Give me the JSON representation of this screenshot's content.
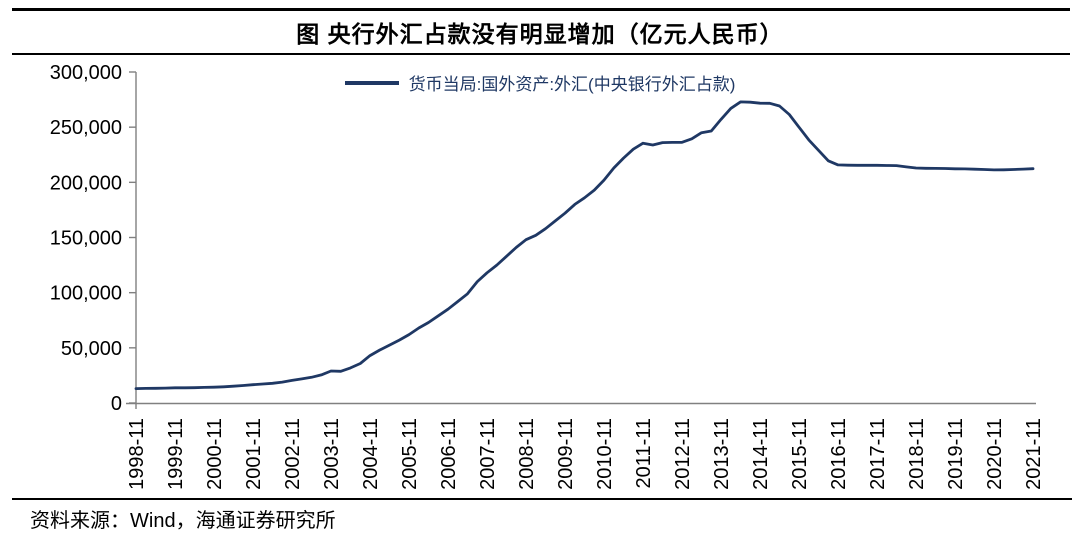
{
  "header": {
    "title": "图  央行外汇占款没有明显增加（亿元人民币）"
  },
  "legend": {
    "label": "货币当局:国外资产:外汇(中央银行外汇占款)"
  },
  "footer": {
    "source": "资料来源：Wind，海通证券研究所"
  },
  "colors": {
    "line": "#1F3864",
    "axis": "#808080",
    "tick_text": "#000000"
  },
  "chart_data": {
    "type": "line",
    "title": "央行外汇占款没有明显增加",
    "unit": "亿元人民币",
    "grid": false,
    "legend_position": "top-center",
    "ylim": [
      0,
      300000
    ],
    "ytick_interval": 50000,
    "ytick_labels": [
      "0",
      "50,000",
      "100,000",
      "150,000",
      "200,000",
      "250,000",
      "300,000"
    ],
    "xtick_labels": [
      "1998-11",
      "1999-11",
      "2000-11",
      "2001-11",
      "2002-11",
      "2003-11",
      "2004-11",
      "2005-11",
      "2006-11",
      "2007-11",
      "2008-11",
      "2009-11",
      "2010-11",
      "2011-11",
      "2012-11",
      "2013-11",
      "2014-11",
      "2015-11",
      "2016-11",
      "2017-11",
      "2018-11",
      "2019-11",
      "2020-11",
      "2021-11"
    ],
    "series": [
      {
        "name": "货币当局:国外资产:外汇(中央银行外汇占款)",
        "color": "#1F3864",
        "x": [
          "1998-11",
          "1999-02",
          "1999-05",
          "1999-08",
          "1999-11",
          "2000-02",
          "2000-05",
          "2000-08",
          "2000-11",
          "2001-02",
          "2001-05",
          "2001-08",
          "2001-11",
          "2002-02",
          "2002-05",
          "2002-08",
          "2002-11",
          "2003-02",
          "2003-05",
          "2003-08",
          "2003-11",
          "2004-02",
          "2004-05",
          "2004-08",
          "2004-11",
          "2005-02",
          "2005-05",
          "2005-08",
          "2005-11",
          "2006-02",
          "2006-05",
          "2006-08",
          "2006-11",
          "2007-02",
          "2007-05",
          "2007-08",
          "2007-11",
          "2008-02",
          "2008-05",
          "2008-08",
          "2008-11",
          "2009-02",
          "2009-05",
          "2009-08",
          "2009-11",
          "2010-02",
          "2010-05",
          "2010-08",
          "2010-11",
          "2011-02",
          "2011-05",
          "2011-08",
          "2011-11",
          "2012-02",
          "2012-05",
          "2012-08",
          "2012-11",
          "2013-02",
          "2013-05",
          "2013-08",
          "2013-11",
          "2014-02",
          "2014-05",
          "2014-08",
          "2014-11",
          "2015-02",
          "2015-05",
          "2015-08",
          "2015-11",
          "2016-02",
          "2016-05",
          "2016-08",
          "2016-11",
          "2017-02",
          "2017-05",
          "2017-08",
          "2017-11",
          "2018-02",
          "2018-05",
          "2018-08",
          "2018-11",
          "2019-02",
          "2019-05",
          "2019-08",
          "2019-11",
          "2020-02",
          "2020-05",
          "2020-08",
          "2020-11",
          "2021-02",
          "2021-05",
          "2021-08",
          "2021-11"
        ],
        "values": [
          13050,
          13200,
          13350,
          13500,
          13750,
          13800,
          13900,
          14100,
          14350,
          14700,
          15200,
          15900,
          16600,
          17200,
          17900,
          18900,
          20500,
          21800,
          23300,
          25500,
          29000,
          28700,
          31800,
          35800,
          43000,
          48000,
          52500,
          57000,
          62000,
          68000,
          73000,
          79000,
          85000,
          92000,
          99000,
          110000,
          118000,
          125000,
          133000,
          141000,
          148000,
          152000,
          158000,
          165000,
          172000,
          180000,
          186000,
          193000,
          202000,
          213000,
          222000,
          230000,
          235500,
          233800,
          236000,
          236200,
          236300,
          239500,
          245000,
          246500,
          257000,
          267000,
          272900,
          272600,
          271700,
          271600,
          269200,
          261500,
          250000,
          238500,
          229000,
          219500,
          215800,
          215500,
          215400,
          215400,
          215400,
          215300,
          215200,
          214000,
          213000,
          212700,
          212600,
          212500,
          212300,
          212200,
          211900,
          211600,
          211300,
          211400,
          211600,
          212000,
          212400
        ]
      }
    ]
  }
}
